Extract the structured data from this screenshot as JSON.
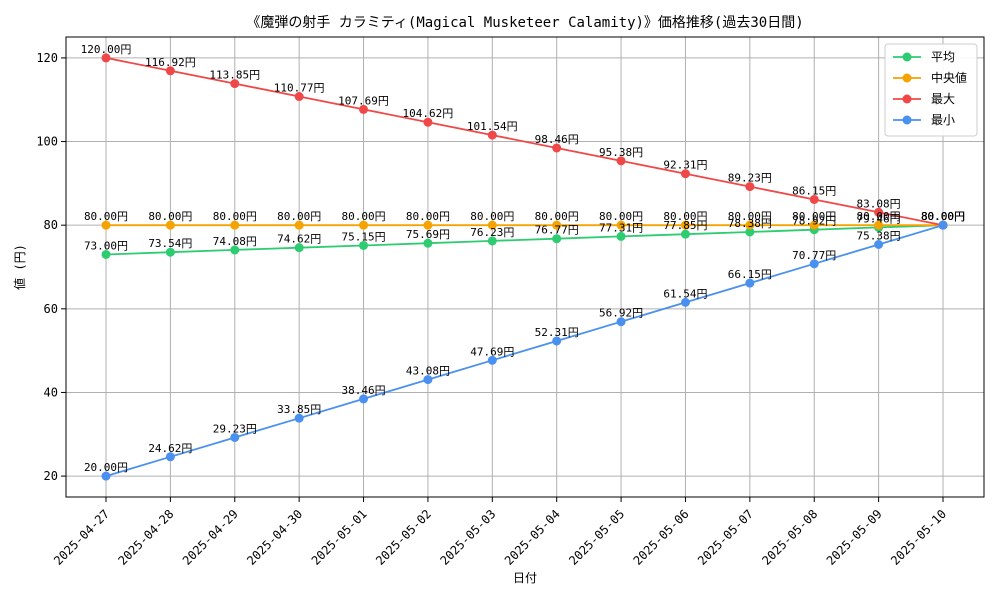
{
  "chart_data": {
    "type": "line",
    "title": "《魔弾の射手 カラミティ(Magical Musketeer Calamity)》価格推移(過去30日間)",
    "xlabel": "日付",
    "ylabel": "値 (円)",
    "ylim": [
      15,
      125
    ],
    "yticks": [
      20,
      40,
      60,
      80,
      100,
      120
    ],
    "grid": true,
    "legend_position": "top-right",
    "label_suffix": "円",
    "categories": [
      "2025-04-27",
      "2025-04-28",
      "2025-04-29",
      "2025-04-30",
      "2025-05-01",
      "2025-05-02",
      "2025-05-03",
      "2025-05-04",
      "2025-05-05",
      "2025-05-06",
      "2025-05-07",
      "2025-05-08",
      "2025-05-09",
      "2025-05-10"
    ],
    "series": [
      {
        "name": "平均",
        "color": "#2ecc71",
        "values": [
          73.0,
          73.54,
          74.08,
          74.62,
          75.15,
          75.69,
          76.23,
          76.77,
          77.31,
          77.85,
          78.38,
          78.92,
          79.46,
          80.0
        ]
      },
      {
        "name": "中央値",
        "color": "#f5a300",
        "values": [
          80.0,
          80.0,
          80.0,
          80.0,
          80.0,
          80.0,
          80.0,
          80.0,
          80.0,
          80.0,
          80.0,
          80.0,
          80.0,
          80.0
        ]
      },
      {
        "name": "最大",
        "color": "#f04848",
        "values": [
          120.0,
          116.92,
          113.85,
          110.77,
          107.69,
          104.62,
          101.54,
          98.46,
          95.38,
          92.31,
          89.23,
          86.15,
          83.08,
          80.0
        ]
      },
      {
        "name": "最小",
        "color": "#4a90f0",
        "values": [
          20.0,
          24.62,
          29.23,
          33.85,
          38.46,
          43.08,
          47.69,
          52.31,
          56.92,
          61.54,
          66.15,
          70.77,
          75.38,
          80.0
        ]
      }
    ]
  }
}
